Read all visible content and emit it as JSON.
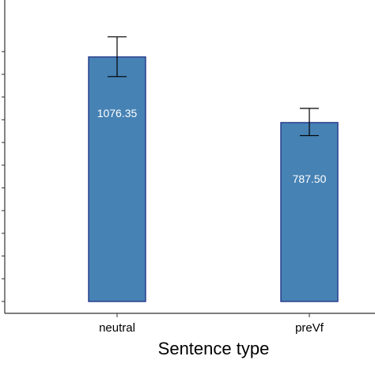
{
  "chart_data": {
    "type": "bar",
    "categories": [
      "neutral",
      "preVf"
    ],
    "values": [
      1076.35,
      787.5
    ],
    "value_labels": [
      "1076.35",
      "787.50"
    ],
    "error_bars": [
      {
        "low": 990,
        "high": 1165
      },
      {
        "low": 730,
        "high": 850
      }
    ],
    "xlabel": "Sentence type",
    "ylabel": "",
    "ylim": [
      0,
      1180
    ],
    "grid": false,
    "bar_color": "#4682b4",
    "bar_edge_color": "#2a3f8f"
  }
}
